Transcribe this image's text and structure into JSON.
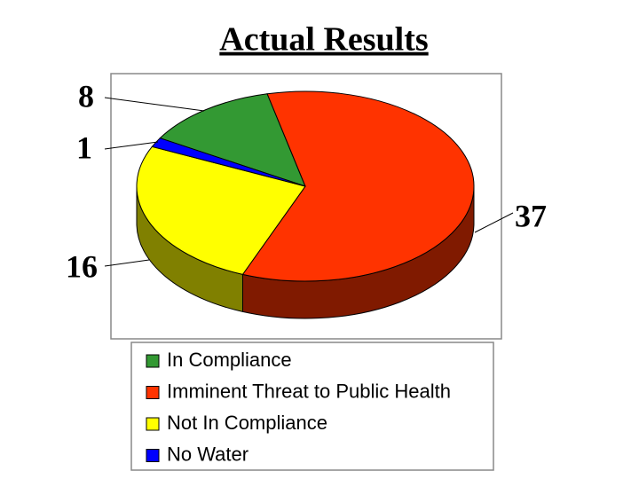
{
  "chart_data": {
    "type": "pie3d",
    "title": "Actual Results",
    "categories": [
      "In Compliance",
      "Imminent Threat to Public Health",
      "Not In Compliance",
      "No Water"
    ],
    "values": [
      8,
      37,
      16,
      1
    ],
    "colors": [
      "#339933",
      "#ff3300",
      "#ffff00",
      "#0000ff"
    ]
  }
}
